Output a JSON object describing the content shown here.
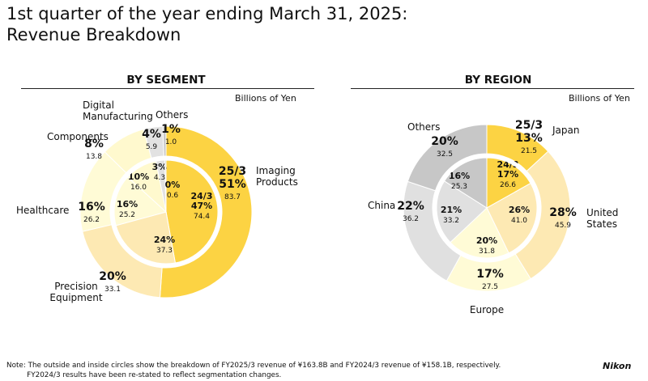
{
  "title_line1": "1st quarter of the year ending March 31, 2025:",
  "title_line2": "Revenue Breakdown",
  "segment": {
    "heading": "BY SEGMENT",
    "units": "Billions of Yen"
  },
  "region": {
    "heading": "BY REGION",
    "units": "Billions of Yen"
  },
  "note_line1": "Note: The outside and inside circles show the breakdown of FY2025/3 revenue of ¥163.8B and FY2024/3 revenue of ¥158.1B, respectively.",
  "note_line2": "         FY2024/3 results have been re-stated to reflect segmentation changes.",
  "logo": "Nikon",
  "colors": {
    "imaging": "#fcd343",
    "precision": "#fde9b3",
    "healthcare": "#fffbd6",
    "components": "#fff9ce",
    "digital": "#e2e2e2",
    "others_seg": "#c7c7c7",
    "japan": "#fcd343",
    "us": "#fde9b3",
    "europe": "#fffbd6",
    "china": "#e0e0e0",
    "others_reg": "#c7c7c7"
  },
  "chart_data": [
    {
      "type": "pie",
      "title": "BY SEGMENT",
      "subtitle": "Billions of Yen",
      "outer_ring_fy": "25/3",
      "inner_ring_fy": "24/3",
      "categories": [
        "Imaging Products",
        "Precision Equipment",
        "Healthcare",
        "Components",
        "Digital Manufacturing",
        "Others"
      ],
      "series": [
        {
          "name": "25/3",
          "values": [
            83.7,
            33.1,
            26.2,
            13.8,
            5.9,
            1.0
          ],
          "percent_labels": [
            "51%",
            "20%",
            "16%",
            "8%",
            "4%",
            "1%"
          ]
        },
        {
          "name": "24/3",
          "values": [
            74.4,
            37.3,
            25.2,
            16.0,
            4.3,
            0.6
          ],
          "percent_labels": [
            "47%",
            "24%",
            "16%",
            "10%",
            "3%",
            "0%"
          ]
        }
      ]
    },
    {
      "type": "pie",
      "title": "BY REGION",
      "subtitle": "Billions of Yen",
      "outer_ring_fy": "25/3",
      "inner_ring_fy": "24/3",
      "categories": [
        "Japan",
        "United States",
        "Europe",
        "China",
        "Others"
      ],
      "series": [
        {
          "name": "25/3",
          "values": [
            21.5,
            45.9,
            27.5,
            36.2,
            32.5
          ],
          "percent_labels": [
            "13%",
            "28%",
            "17%",
            "22%",
            "20%"
          ]
        },
        {
          "name": "24/3",
          "values": [
            26.6,
            41.0,
            31.8,
            33.2,
            25.3
          ],
          "percent_labels": [
            "17%",
            "26%",
            "20%",
            "21%",
            "16%"
          ]
        }
      ]
    }
  ]
}
